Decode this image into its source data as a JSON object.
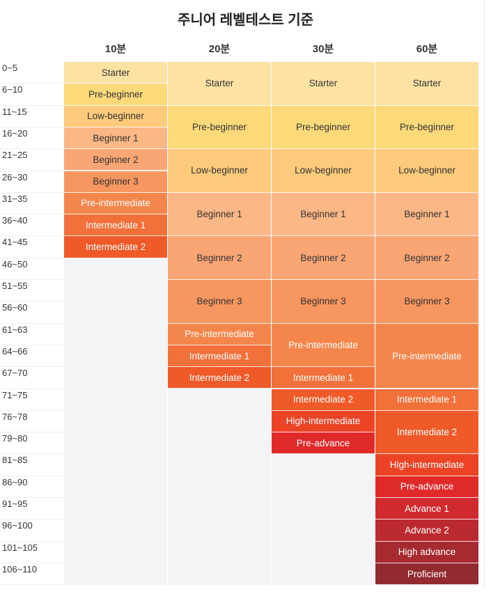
{
  "title": "주니어 레벨테스트 기준",
  "columns": [
    "10분",
    "20분",
    "30분",
    "60분"
  ],
  "rows": [
    "0~5",
    "6~10",
    "11~15",
    "16~20",
    "21~25",
    "26~30",
    "31~35",
    "36~40",
    "41~45",
    "46~50",
    "51~55",
    "56~60",
    "61~63",
    "64~66",
    "67~70",
    "71~75",
    "76~78",
    "79~80",
    "81~85",
    "86~90",
    "91~95",
    "96~100",
    "101~105",
    "106~110"
  ],
  "levels": {
    "starter": {
      "name": "Starter",
      "color": "#fde2a4",
      "text": "#333333"
    },
    "pre_beginner": {
      "name": "Pre-beginner",
      "color": "#fdd97a",
      "text": "#333333"
    },
    "low_beginner": {
      "name": "Low-beginner",
      "color": "#fcca7a",
      "text": "#333333"
    },
    "beginner_1": {
      "name": "Beginner 1",
      "color": "#fbb785",
      "text": "#333333"
    },
    "beginner_2": {
      "name": "Beginner 2",
      "color": "#f9a574",
      "text": "#333333"
    },
    "beginner_3": {
      "name": "Beginner 3",
      "color": "#f79660",
      "text": "#333333"
    },
    "pre_intermediate": {
      "name": "Pre-intermediate",
      "color": "#f5864b",
      "text": "#ffffff"
    },
    "intermediate_1": {
      "name": "Intermediate 1",
      "color": "#f2703a",
      "text": "#ffffff"
    },
    "intermediate_2": {
      "name": "Intermediate 2",
      "color": "#ef5a28",
      "text": "#ffffff"
    },
    "high_intermediate": {
      "name": "High-intermediate",
      "color": "#ec4326",
      "text": "#ffffff"
    },
    "pre_advance": {
      "name": "Pre-advance",
      "color": "#e02a2a",
      "text": "#ffffff"
    },
    "advance_1": {
      "name": "Advance 1",
      "color": "#cf2a2e",
      "text": "#ffffff"
    },
    "advance_2": {
      "name": "Advance 2",
      "color": "#bb2a30",
      "text": "#ffffff"
    },
    "high_advance": {
      "name": "High advance",
      "color": "#a62a30",
      "text": "#ffffff"
    },
    "proficient": {
      "name": "Proficient",
      "color": "#922a30",
      "text": "#ffffff"
    }
  },
  "column_cells": [
    [
      {
        "level": "starter",
        "rows": 1
      },
      {
        "level": "pre_beginner",
        "rows": 1
      },
      {
        "level": "low_beginner",
        "rows": 1
      },
      {
        "level": "beginner_1",
        "rows": 1
      },
      {
        "level": "beginner_2",
        "rows": 1
      },
      {
        "level": "beginner_3",
        "rows": 1
      },
      {
        "level": "pre_intermediate",
        "rows": 1
      },
      {
        "level": "intermediate_1",
        "rows": 1
      },
      {
        "level": "intermediate_2",
        "rows": 1
      }
    ],
    [
      {
        "level": "starter",
        "rows": 2
      },
      {
        "level": "pre_beginner",
        "rows": 2
      },
      {
        "level": "low_beginner",
        "rows": 2
      },
      {
        "level": "beginner_1",
        "rows": 2
      },
      {
        "level": "beginner_2",
        "rows": 2
      },
      {
        "level": "beginner_3",
        "rows": 2
      },
      {
        "level": "pre_intermediate",
        "rows": 1
      },
      {
        "level": "intermediate_1",
        "rows": 1
      },
      {
        "level": "intermediate_2",
        "rows": 1
      }
    ],
    [
      {
        "level": "starter",
        "rows": 2
      },
      {
        "level": "pre_beginner",
        "rows": 2
      },
      {
        "level": "low_beginner",
        "rows": 2
      },
      {
        "level": "beginner_1",
        "rows": 2
      },
      {
        "level": "beginner_2",
        "rows": 2
      },
      {
        "level": "beginner_3",
        "rows": 2
      },
      {
        "level": "pre_intermediate",
        "rows": 2
      },
      {
        "level": "intermediate_1",
        "rows": 1
      },
      {
        "level": "intermediate_2",
        "rows": 1
      },
      {
        "level": "high_intermediate",
        "rows": 1
      },
      {
        "level": "pre_advance",
        "rows": 1
      }
    ],
    [
      {
        "level": "starter",
        "rows": 2
      },
      {
        "level": "pre_beginner",
        "rows": 2
      },
      {
        "level": "low_beginner",
        "rows": 2
      },
      {
        "level": "beginner_1",
        "rows": 2
      },
      {
        "level": "beginner_2",
        "rows": 2
      },
      {
        "level": "beginner_3",
        "rows": 2
      },
      {
        "level": "pre_intermediate",
        "rows": 3
      },
      {
        "level": "intermediate_1",
        "rows": 1
      },
      {
        "level": "intermediate_2",
        "rows": 2
      },
      {
        "level": "high_intermediate",
        "rows": 1
      },
      {
        "level": "pre_advance",
        "rows": 1
      },
      {
        "level": "advance_1",
        "rows": 1
      },
      {
        "level": "advance_2",
        "rows": 1
      },
      {
        "level": "high_advance",
        "rows": 1
      },
      {
        "level": "proficient",
        "rows": 1
      }
    ]
  ]
}
